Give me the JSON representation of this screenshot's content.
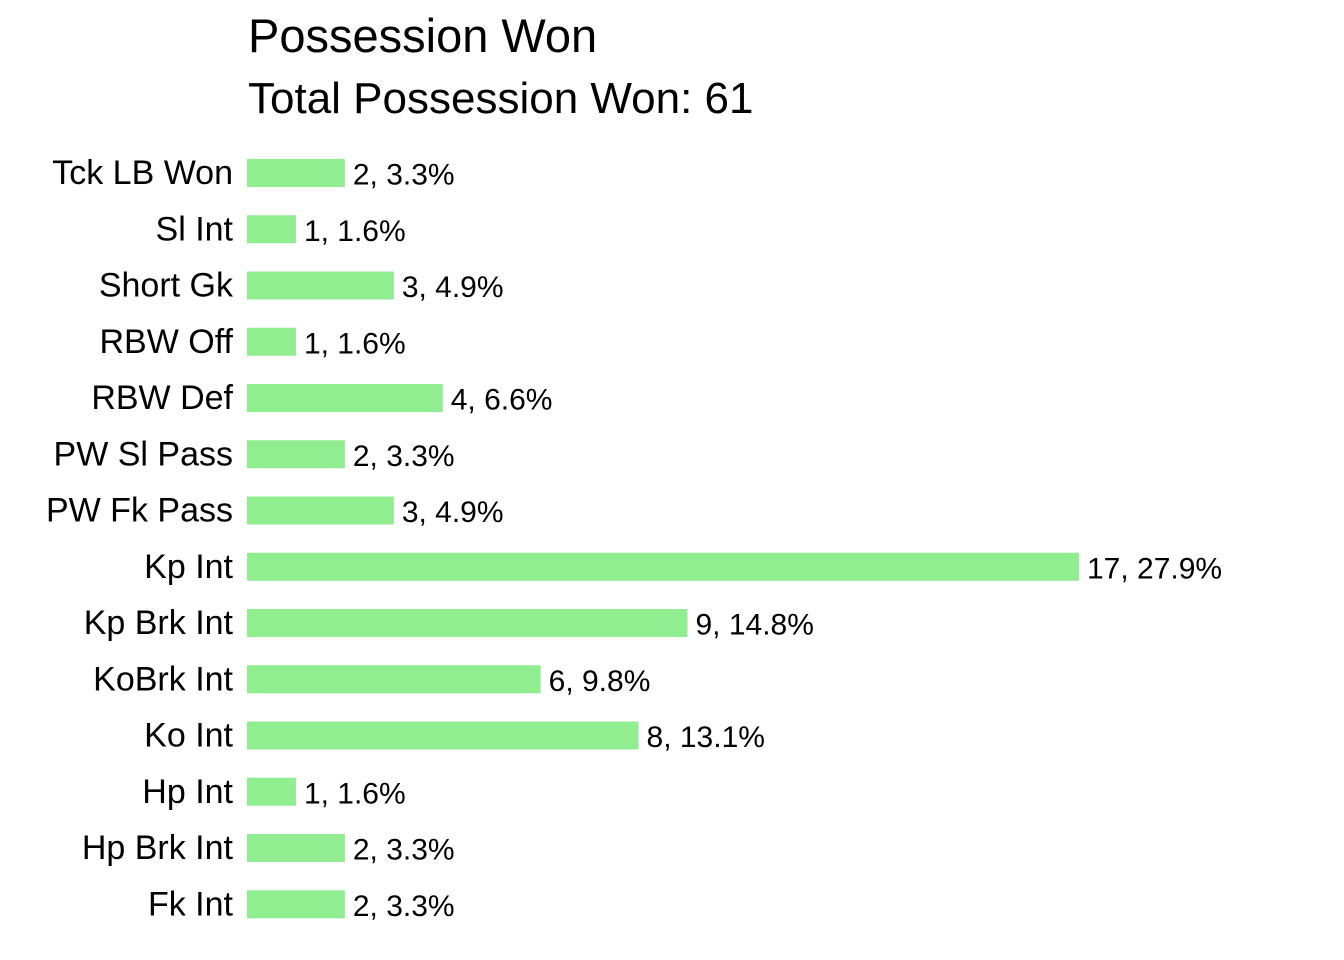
{
  "chart_data": {
    "type": "bar",
    "orientation": "horizontal",
    "title": "Possession Won",
    "subtitle": "Total Possession Won: 61",
    "categories": [
      "Tck LB Won",
      "Sl Int",
      "Short Gk",
      "RBW Off",
      "RBW Def",
      "PW Sl Pass",
      "PW Fk Pass",
      "Kp Int",
      "Kp Brk Int",
      "KoBrk Int",
      "Ko Int",
      "Hp Int",
      "Hp Brk Int",
      "Fk Int"
    ],
    "values": [
      2,
      1,
      3,
      1,
      4,
      2,
      3,
      17,
      9,
      6,
      8,
      1,
      2,
      2
    ],
    "data_labels": [
      "2, 3.3%",
      "1, 1.6%",
      "3, 4.9%",
      "1, 1.6%",
      "4, 6.6%",
      "2, 3.3%",
      "3, 4.9%",
      "17, 27.9%",
      "9, 14.8%",
      "6, 9.8%",
      "8, 13.1%",
      "1, 1.6%",
      "2, 3.3%",
      "2, 3.3%"
    ],
    "bar_color": "#90EE90",
    "xlim": [
      0,
      17
    ],
    "grid": false,
    "legend": "none"
  }
}
